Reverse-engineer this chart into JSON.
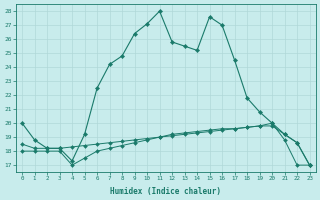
{
  "xlabel": "Humidex (Indice chaleur)",
  "ylabel": "",
  "bg_color": "#c8ecec",
  "grid_color": "#b0d8d8",
  "line_color": "#1a7a6a",
  "xlim": [
    -0.5,
    23.5
  ],
  "ylim": [
    16.5,
    28.5
  ],
  "yticks": [
    17,
    18,
    19,
    20,
    21,
    22,
    23,
    24,
    25,
    26,
    27,
    28
  ],
  "xticks": [
    0,
    1,
    2,
    3,
    4,
    5,
    6,
    7,
    8,
    9,
    10,
    11,
    12,
    13,
    14,
    15,
    16,
    17,
    18,
    19,
    20,
    21,
    22,
    23
  ],
  "main_x": [
    0,
    1,
    2,
    3,
    4,
    5,
    6,
    7,
    8,
    9,
    10,
    11,
    12,
    13,
    14,
    15,
    16,
    17,
    18,
    19,
    20,
    21,
    22,
    23
  ],
  "main_y": [
    20.0,
    18.8,
    18.2,
    18.2,
    17.3,
    19.2,
    22.5,
    24.2,
    24.8,
    26.4,
    27.1,
    28.0,
    25.8,
    25.5,
    25.2,
    27.6,
    27.0,
    24.5,
    21.8,
    20.8,
    20.0,
    19.2,
    18.6,
    17.0
  ],
  "flat1_x": [
    0,
    1,
    2,
    3,
    4,
    5,
    6,
    7,
    8,
    9,
    10,
    11,
    12,
    13,
    14,
    15,
    16,
    17,
    18,
    19,
    20,
    21,
    22,
    23
  ],
  "flat1_y": [
    18.5,
    18.2,
    18.2,
    18.2,
    18.3,
    18.4,
    18.5,
    18.6,
    18.7,
    18.8,
    18.9,
    19.0,
    19.1,
    19.2,
    19.3,
    19.4,
    19.5,
    19.6,
    19.7,
    19.8,
    19.8,
    19.2,
    18.6,
    17.0
  ],
  "flat2_x": [
    0,
    1,
    2,
    3,
    4,
    5,
    6,
    7,
    8,
    9,
    10,
    11,
    12,
    13,
    14,
    15,
    16,
    17,
    18,
    19,
    20,
    21,
    22,
    23
  ],
  "flat2_y": [
    18.0,
    18.0,
    18.0,
    18.0,
    17.0,
    17.5,
    18.0,
    18.2,
    18.4,
    18.6,
    18.8,
    19.0,
    19.2,
    19.3,
    19.4,
    19.5,
    19.6,
    19.6,
    19.7,
    19.8,
    20.0,
    18.8,
    17.0,
    17.0
  ]
}
